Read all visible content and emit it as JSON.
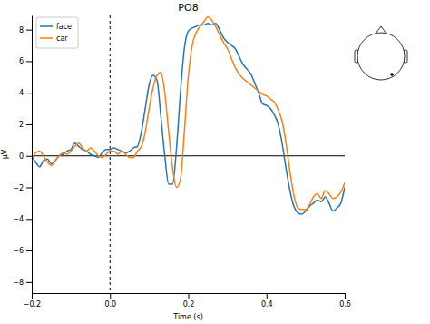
{
  "chart_data": {
    "type": "line",
    "title": "PO8",
    "x_label": "Time (s)",
    "y_label": "µV",
    "legend": "upper left",
    "xlim": [
      -0.2,
      0.6
    ],
    "ylim": [
      -8.7,
      8.9
    ],
    "xticks": [
      {
        "value": -0.2,
        "label": "−0.2"
      },
      {
        "value": 0,
        "label": "0.0"
      },
      {
        "value": 0.2,
        "label": "0.2"
      },
      {
        "value": 0.4,
        "label": "0.4"
      },
      {
        "value": 0.6,
        "label": "0.6"
      }
    ],
    "yticks": [
      {
        "value": -8,
        "label": "−8"
      },
      {
        "value": -6,
        "label": "−6"
      },
      {
        "value": -4,
        "label": "−4"
      },
      {
        "value": -2,
        "label": "−2"
      },
      0,
      2,
      4,
      6,
      8
    ],
    "x": [
      -0.2,
      -0.19,
      -0.18,
      -0.17,
      -0.16,
      -0.15,
      -0.14,
      -0.13,
      -0.12,
      -0.11,
      -0.1,
      -0.09,
      -0.08,
      -0.07,
      -0.06,
      -0.05,
      -0.04,
      -0.03,
      -0.02,
      -0.01,
      0,
      0.01,
      0.02,
      0.03,
      0.04,
      0.05,
      0.06,
      0.07,
      0.08,
      0.09,
      0.1,
      0.11,
      0.12,
      0.13,
      0.14,
      0.15,
      0.16,
      0.17,
      0.18,
      0.19,
      0.2,
      0.21,
      0.22,
      0.23,
      0.24,
      0.25,
      0.26,
      0.27,
      0.28,
      0.29,
      0.3,
      0.31,
      0.32,
      0.33,
      0.34,
      0.35,
      0.36,
      0.37,
      0.38,
      0.39,
      0.4,
      0.41,
      0.42,
      0.43,
      0.44,
      0.45,
      0.46,
      0.47,
      0.48,
      0.49,
      0.5,
      0.51,
      0.52,
      0.53,
      0.54,
      0.55,
      0.56,
      0.57,
      0.58,
      0.59,
      0.6
    ],
    "series": [
      {
        "name": "face",
        "color": "#1f77b4",
        "values": [
          0.0,
          -0.4,
          -0.7,
          -0.3,
          -0.2,
          -0.5,
          -0.3,
          0.0,
          0.1,
          0.3,
          0.4,
          0.8,
          0.6,
          0.4,
          0.3,
          0.1,
          0.0,
          -0.1,
          0.2,
          0.4,
          0.4,
          0.5,
          0.4,
          0.3,
          0.2,
          0.3,
          0.5,
          0.6,
          1.5,
          3.0,
          4.5,
          5.1,
          4.8,
          2.5,
          0.0,
          -1.8,
          -1.8,
          0.5,
          4.0,
          6.8,
          7.9,
          8.1,
          8.2,
          8.3,
          8.3,
          8.4,
          8.3,
          8.4,
          8.0,
          7.5,
          7.2,
          7.0,
          6.8,
          6.3,
          5.8,
          5.5,
          5.2,
          4.6,
          4.0,
          3.3,
          3.2,
          3.0,
          2.6,
          2.0,
          0.8,
          -0.8,
          -2.2,
          -3.2,
          -3.6,
          -3.7,
          -3.5,
          -3.2,
          -3.0,
          -2.8,
          -2.9,
          -2.6,
          -3.0,
          -3.5,
          -3.3,
          -3.0,
          -2.0
        ]
      },
      {
        "name": "car",
        "color": "#ff7f0e",
        "values": [
          -0.2,
          0.2,
          0.3,
          0.0,
          -0.4,
          -0.6,
          -0.3,
          0.0,
          0.2,
          0.1,
          0.3,
          0.6,
          0.8,
          0.5,
          0.3,
          0.5,
          0.3,
          0.0,
          -0.1,
          0.1,
          0.3,
          0.3,
          0.1,
          0.3,
          0.1,
          -0.1,
          -0.1,
          0.3,
          0.6,
          1.5,
          3.0,
          4.3,
          5.1,
          5.3,
          4.0,
          1.5,
          -0.8,
          -2.0,
          -1.5,
          1.5,
          5.0,
          7.0,
          7.8,
          8.2,
          8.5,
          8.8,
          8.6,
          8.2,
          7.7,
          7.2,
          6.8,
          6.2,
          5.6,
          5.2,
          4.9,
          4.7,
          4.5,
          4.3,
          4.1,
          3.9,
          3.8,
          3.6,
          3.4,
          2.9,
          2.2,
          0.8,
          -1.0,
          -2.5,
          -3.3,
          -3.4,
          -3.4,
          -3.1,
          -2.6,
          -2.4,
          -2.7,
          -2.2,
          -2.4,
          -2.7,
          -2.6,
          -2.3,
          -1.7
        ]
      }
    ]
  }
}
